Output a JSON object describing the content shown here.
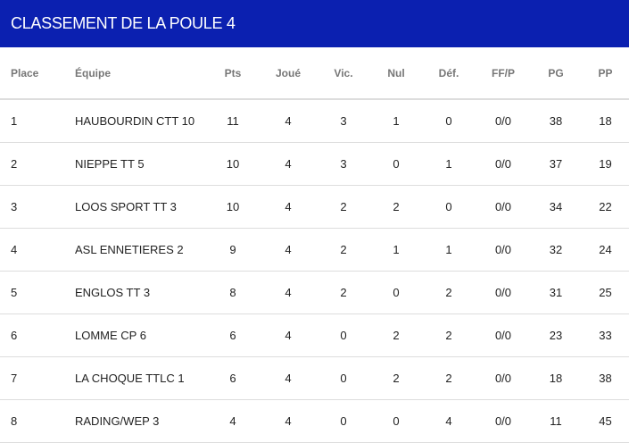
{
  "title": "CLASSEMENT DE LA POULE 4",
  "columns": [
    "Place",
    "Équipe",
    "Pts",
    "Joué",
    "Vic.",
    "Nul",
    "Déf.",
    "FF/P",
    "PG",
    "PP"
  ],
  "rows": [
    [
      "1",
      "HAUBOURDIN CTT 10",
      "11",
      "4",
      "3",
      "1",
      "0",
      "0/0",
      "38",
      "18"
    ],
    [
      "2",
      "NIEPPE TT 5",
      "10",
      "4",
      "3",
      "0",
      "1",
      "0/0",
      "37",
      "19"
    ],
    [
      "3",
      "LOOS SPORT TT 3",
      "10",
      "4",
      "2",
      "2",
      "0",
      "0/0",
      "34",
      "22"
    ],
    [
      "4",
      "ASL ENNETIERES 2",
      "9",
      "4",
      "2",
      "1",
      "1",
      "0/0",
      "32",
      "24"
    ],
    [
      "5",
      "ENGLOS TT 3",
      "8",
      "4",
      "2",
      "0",
      "2",
      "0/0",
      "31",
      "25"
    ],
    [
      "6",
      "LOMME CP 6",
      "6",
      "4",
      "0",
      "2",
      "2",
      "0/0",
      "23",
      "33"
    ],
    [
      "7",
      "LA CHOQUE TTLC 1",
      "6",
      "4",
      "0",
      "2",
      "2",
      "0/0",
      "18",
      "38"
    ],
    [
      "8",
      "RADING/WEP 3",
      "4",
      "4",
      "0",
      "0",
      "4",
      "0/0",
      "11",
      "45"
    ]
  ],
  "colors": {
    "header_bg": "#0b20b0"
  }
}
